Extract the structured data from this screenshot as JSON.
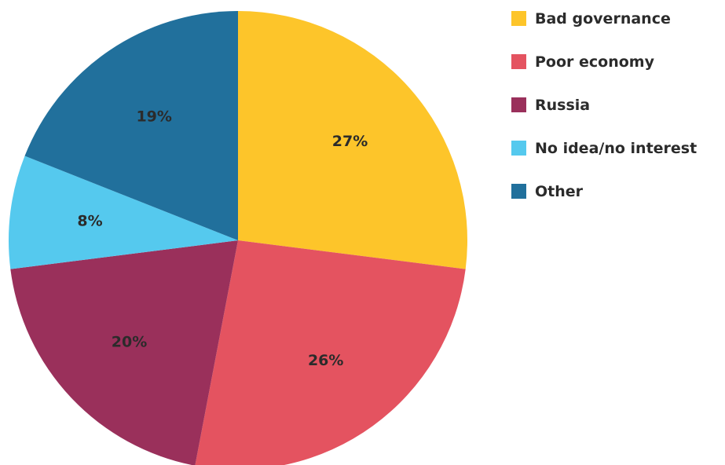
{
  "chart_data": {
    "type": "pie",
    "labels": [
      "Bad governance",
      "Poor economy",
      "Russia",
      "No idea/no interest",
      "Other"
    ],
    "values": [
      27,
      26,
      20,
      8,
      19
    ],
    "value_labels": [
      "27%",
      "26%",
      "20%",
      "8%",
      "19%"
    ],
    "colors": [
      "#FDC52A",
      "#E45360",
      "#9A305B",
      "#55C9EE",
      "#21709C"
    ],
    "legend_position": "right",
    "start_angle": "12 o'clock",
    "direction": "clockwise"
  }
}
